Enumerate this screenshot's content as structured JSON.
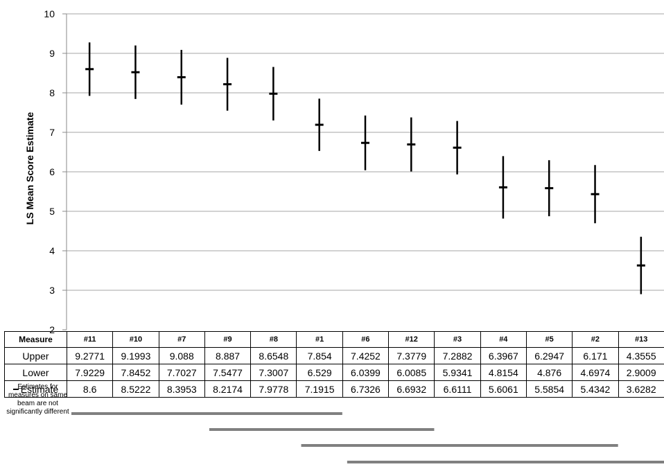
{
  "chart_data": {
    "type": "errorbar",
    "ylabel": "LS Mean Score Estimate",
    "xlabel": "",
    "title": "",
    "ylim": [
      2,
      10
    ],
    "yticks": [
      2,
      3,
      4,
      5,
      6,
      7,
      8,
      9,
      10
    ],
    "grid": true,
    "categories": [
      "#11",
      "#10",
      "#7",
      "#9",
      "#8",
      "#1",
      "#6",
      "#12",
      "#3",
      "#4",
      "#5",
      "#2",
      "#13"
    ],
    "upper": [
      9.2771,
      9.1993,
      9.088,
      8.887,
      8.6548,
      7.854,
      7.4252,
      7.3779,
      7.2882,
      6.3967,
      6.2947,
      6.171,
      4.3555
    ],
    "lower": [
      7.9229,
      7.8452,
      7.7027,
      7.5477,
      7.3007,
      6.529,
      6.0399,
      6.0085,
      5.9341,
      4.8154,
      4.876,
      4.6974,
      2.9009
    ],
    "estimate": [
      8.6,
      8.5222,
      8.3953,
      8.2174,
      7.9778,
      7.1915,
      6.7326,
      6.6932,
      6.6111,
      5.6061,
      5.5854,
      5.4342,
      3.6282
    ],
    "groupings": [
      {
        "from": "#11",
        "to": "#1"
      },
      {
        "from": "#9",
        "to": "#12"
      },
      {
        "from": "#1",
        "to": "#2"
      },
      {
        "from": "#6",
        "to": "#13"
      }
    ]
  },
  "table": {
    "header_label": "Measure",
    "upper_label": "Upper",
    "lower_label": "Lower",
    "estimate_label": "Estimate",
    "upper_text": [
      "9.2771",
      "9.1993",
      "9.088",
      "8.887",
      "8.6548",
      "7.854",
      "7.4252",
      "7.3779",
      "7.2882",
      "6.3967",
      "6.2947",
      "6.171",
      "4.3555"
    ],
    "lower_text": [
      "7.9229",
      "7.8452",
      "7.7027",
      "7.5477",
      "7.3007",
      "6.529",
      "6.0399",
      "6.0085",
      "5.9341",
      "4.8154",
      "4.876",
      "4.6974",
      "2.9009"
    ],
    "estimate_text": [
      "8.6",
      "8.5222",
      "8.3953",
      "8.2174",
      "7.9778",
      "7.1915",
      "6.7326",
      "6.6932",
      "6.6111",
      "5.6061",
      "5.5854",
      "5.4342",
      "3.6282"
    ]
  },
  "note": "Estimates for measures on same beam are not significantly different",
  "colors": {
    "grid": "#a6a6a6",
    "bars": "#000000",
    "group_lines": "#808080"
  }
}
